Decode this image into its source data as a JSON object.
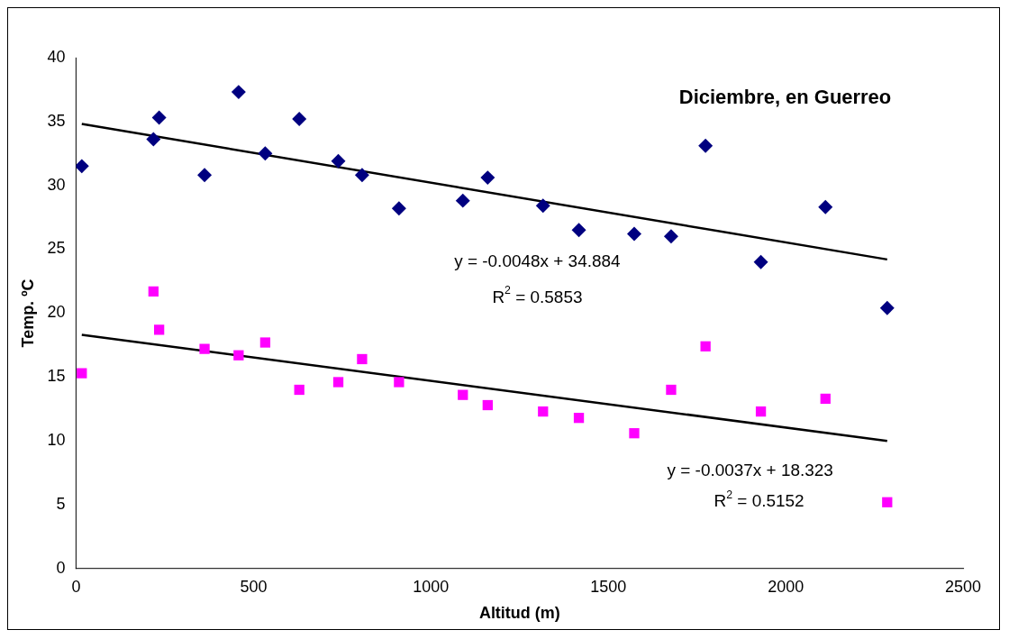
{
  "chart_data": {
    "type": "scatter",
    "title": "Diciembre, en Guerreo",
    "xlabel": "Altitud (m)",
    "ylabel": "Temp. ºC",
    "xlim": [
      0,
      2500
    ],
    "xticks": [
      0,
      500,
      1000,
      1500,
      2000,
      2500
    ],
    "ylim": [
      0,
      40
    ],
    "yticks": [
      0,
      5,
      10,
      15,
      20,
      25,
      30,
      35,
      40
    ],
    "grid": false,
    "legend": false,
    "series": [
      {
        "marker": "diamond",
        "color": "#000080",
        "x": [
          16,
          218,
          234,
          362,
          458,
          533,
          629,
          739,
          806,
          910,
          1090,
          1160,
          1316,
          1417,
          1573,
          1677,
          1774,
          1930,
          2112,
          2286
        ],
        "values": [
          31.5,
          33.6,
          35.3,
          30.8,
          37.3,
          32.5,
          35.2,
          31.9,
          30.8,
          28.2,
          28.8,
          30.6,
          28.4,
          26.5,
          26.2,
          26.0,
          33.1,
          24.0,
          28.3,
          20.4
        ]
      },
      {
        "marker": "square",
        "color": "#ff00ff",
        "x": [
          16,
          218,
          234,
          362,
          458,
          533,
          629,
          739,
          806,
          910,
          1090,
          1160,
          1316,
          1417,
          1573,
          1677,
          1774,
          1930,
          2112,
          2286
        ],
        "values": [
          15.3,
          21.7,
          18.7,
          17.2,
          16.7,
          17.7,
          14.0,
          14.6,
          16.4,
          14.6,
          13.6,
          12.8,
          12.3,
          11.8,
          10.6,
          14.0,
          17.4,
          12.3,
          13.3,
          5.2
        ]
      },
      {
        "type": "line",
        "marker": "none",
        "color": "#000000",
        "x": [
          16,
          2286
        ],
        "values": [
          34.8,
          24.2
        ]
      },
      {
        "type": "line",
        "marker": "none",
        "color": "#000000",
        "x": [
          16,
          2286
        ],
        "values": [
          18.3,
          10.0
        ]
      }
    ],
    "annotations": [
      "y = -0.0048x + 34.884",
      "R$^{2}$ = 0.5853",
      "y = -0.0037x + 18.323",
      "R$^{2}$ = 0.5152"
    ]
  }
}
